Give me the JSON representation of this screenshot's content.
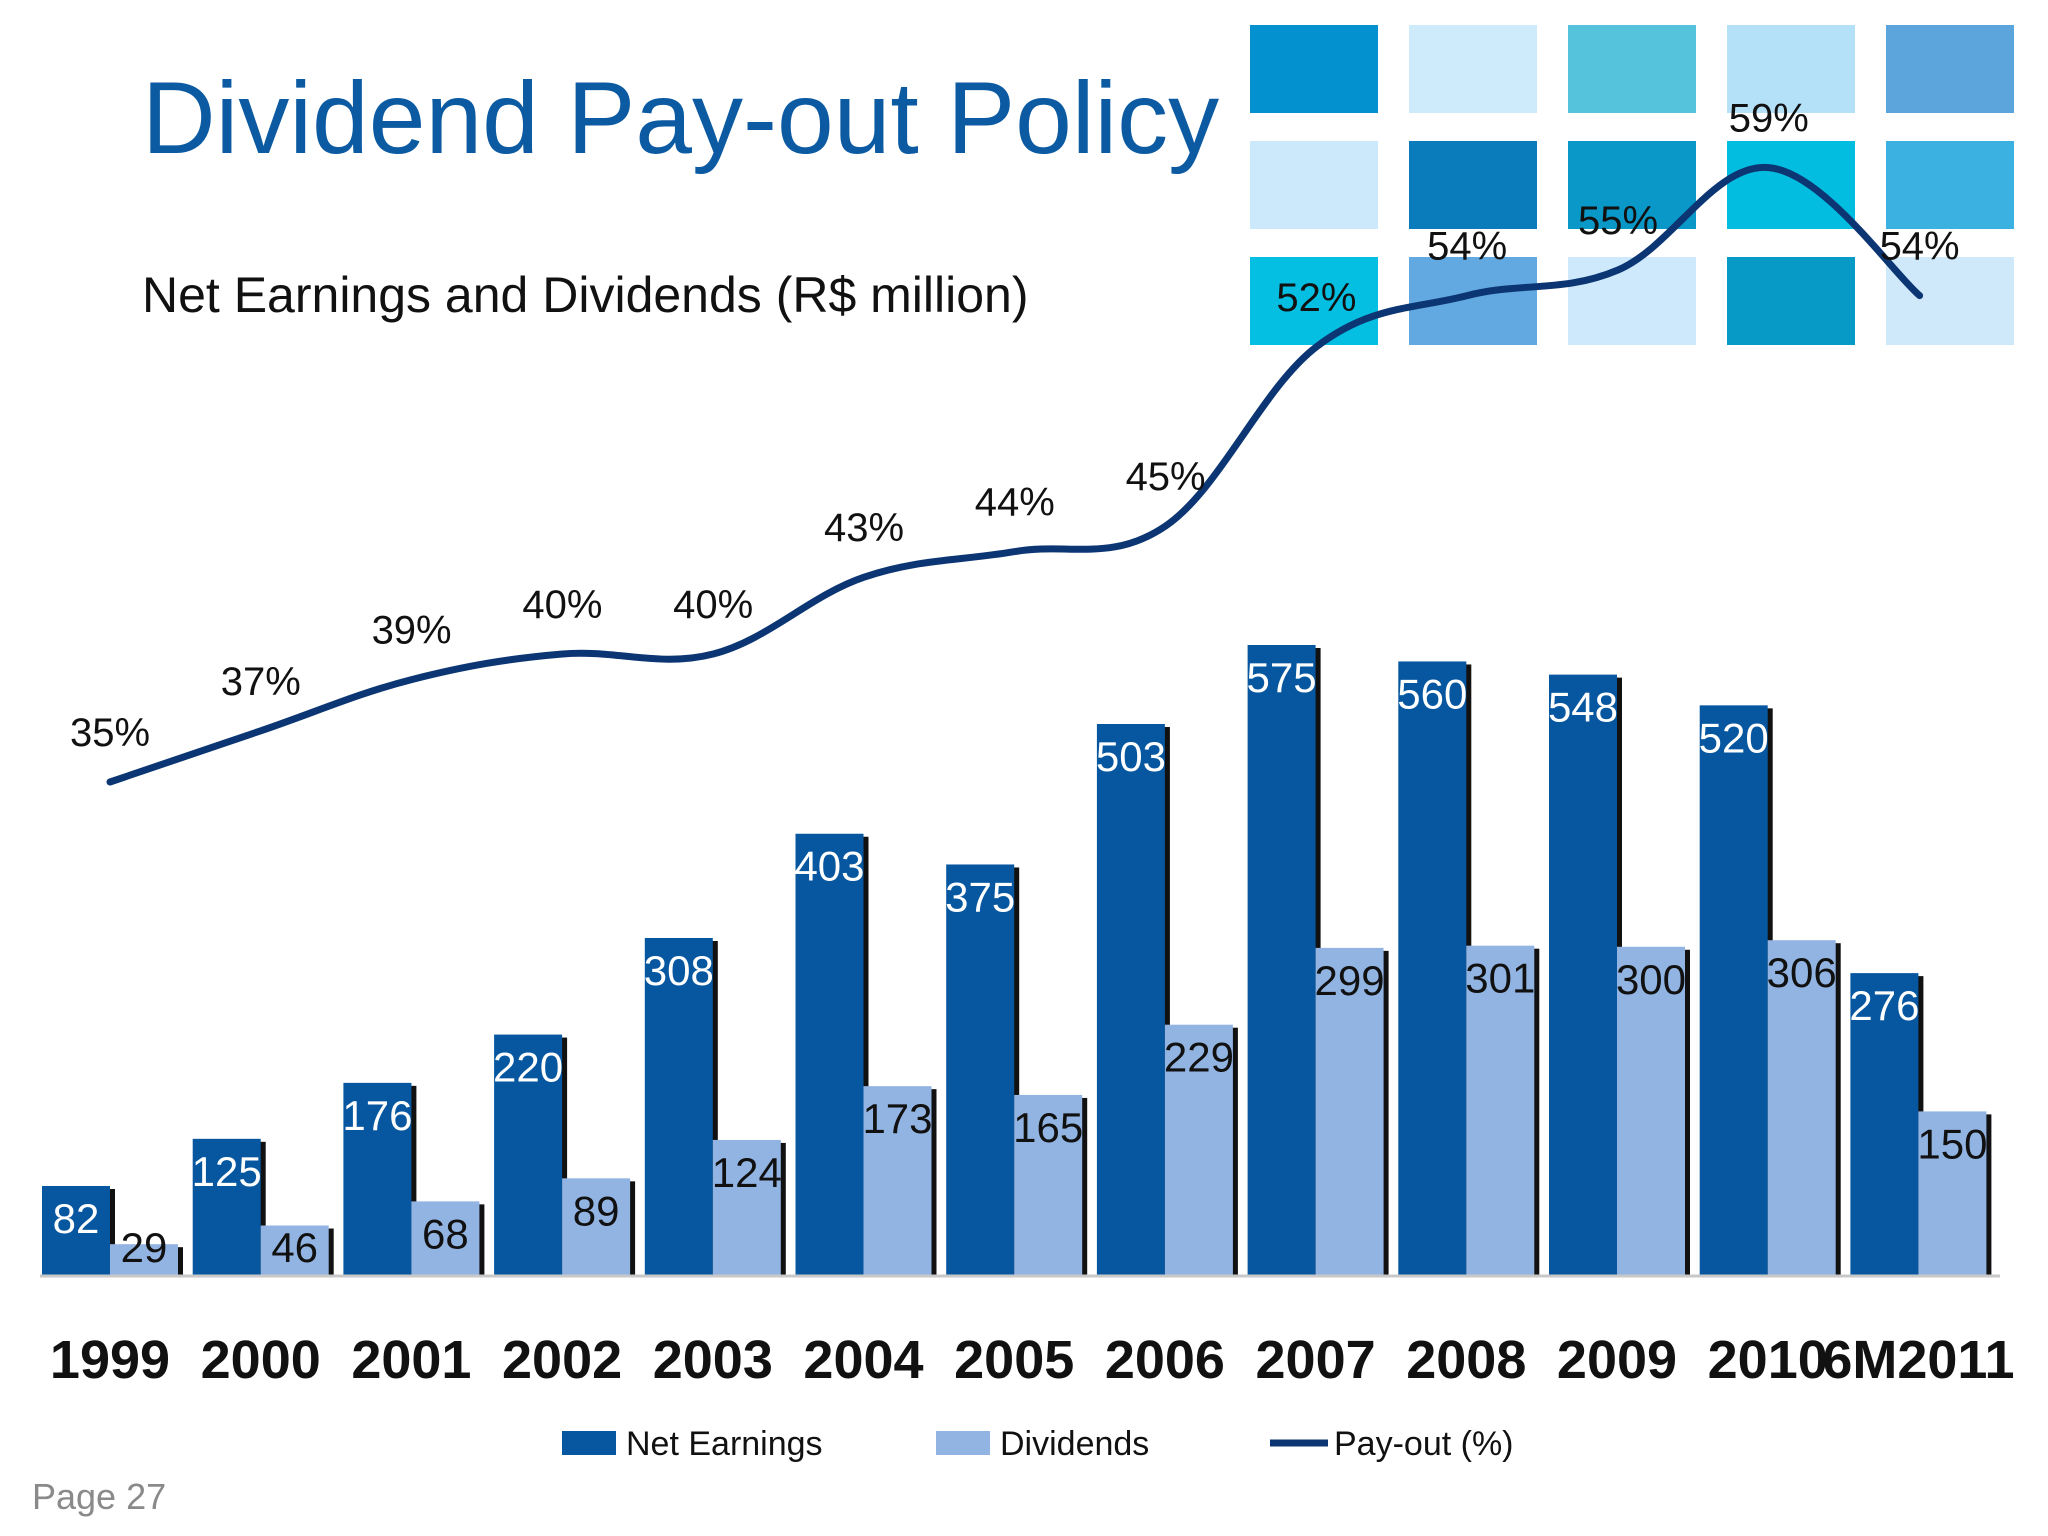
{
  "title": "Dividend Pay-out Policy",
  "subtitle": "Net Earnings and Dividends (R$ million)",
  "page_label": "Page 27",
  "decoration": {
    "tile_colors": [
      [
        "#0391cf",
        "#cdebfb",
        "#55c3dc",
        "#b5e1f8",
        "#5ca4dc"
      ],
      [
        "#cbe9fa",
        "#0a7cbc",
        "#0a98c8",
        "#03bde0",
        "#3ab1e0"
      ],
      [
        "#05bfe3",
        "#62a9e1",
        "#cde9fb",
        "#079ac6",
        "#cfe9fa"
      ]
    ]
  },
  "colors": {
    "net_earnings": "#0657a0",
    "dividends": "#92b4e3",
    "payout_line": "#0c3673",
    "title": "#0b5aa2"
  },
  "chart_data": {
    "type": "bar",
    "categories": [
      "1999",
      "2000",
      "2001",
      "2002",
      "2003",
      "2004",
      "2005",
      "2006",
      "2007",
      "2008",
      "2009",
      "2010",
      "6M2011"
    ],
    "series": [
      {
        "name": "Net Earnings",
        "type": "bar",
        "values": [
          82,
          125,
          176,
          220,
          308,
          403,
          375,
          503,
          575,
          560,
          548,
          520,
          276
        ]
      },
      {
        "name": "Dividends",
        "type": "bar",
        "values": [
          29,
          46,
          68,
          89,
          124,
          173,
          165,
          229,
          299,
          301,
          300,
          306,
          150
        ]
      },
      {
        "name": "Pay-out (%)",
        "type": "line",
        "values": [
          35,
          37,
          39,
          40,
          40,
          43,
          44,
          45,
          52,
          54,
          55,
          59,
          54
        ]
      }
    ],
    "value_labels": {
      "Net Earnings": [
        "82",
        "125",
        "176",
        "220",
        "308",
        "403",
        "375",
        "503",
        "575",
        "560",
        "548",
        "520",
        "276"
      ],
      "Dividends": [
        "29",
        "46",
        "68",
        "89",
        "124",
        "173",
        "165",
        "229",
        "299",
        "301",
        "300",
        "306",
        "150"
      ],
      "Pay-out (%)": [
        "35%",
        "37%",
        "39%",
        "40%",
        "40%",
        "43%",
        "44%",
        "45%",
        "52%",
        "54%",
        "55%",
        "59%",
        "54%"
      ]
    },
    "legend": {
      "position": "bottom",
      "entries": [
        "Net Earnings",
        "Dividends",
        "Pay-out (%)"
      ]
    },
    "ylim": [
      0,
      600
    ],
    "grid": false
  }
}
